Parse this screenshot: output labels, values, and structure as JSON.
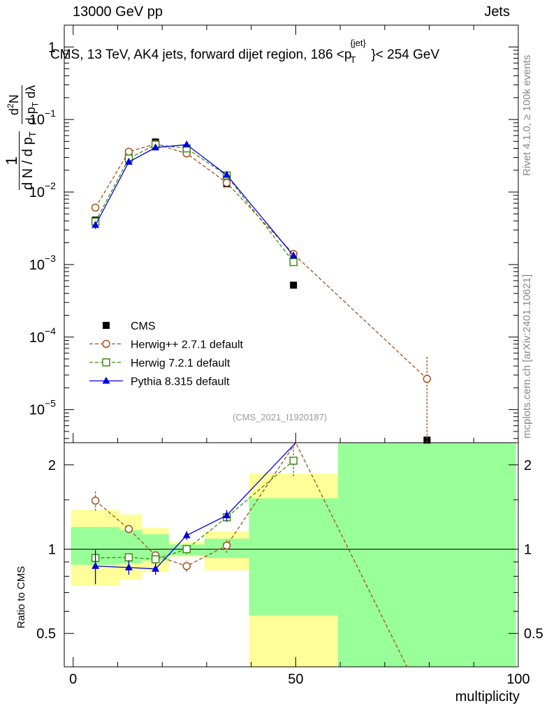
{
  "header": {
    "left": "13000 GeV pp",
    "right": "Jets"
  },
  "side_labels": {
    "rivet": "Rivet 4.1.0, ≥ 100k events",
    "mcplots": "mcplots.cern.ch [arXiv:2401.10621]"
  },
  "analysis_tag": "(CMS_2021_I1920187)",
  "ratio_ylabel": "Ratio to CMS",
  "chart_data": [
    {
      "type": "scatter",
      "title": "CMS, 13 TeV, AK4 jets, forward dijet region, 186 < p_T^{jet} < 254 GeV",
      "xlabel": "multiplicity",
      "ylabel": "1/dN/dp_T  d²N/dp_T dλ",
      "yscale": "log",
      "xlim": [
        -2,
        100
      ],
      "ylim": [
        3.5e-06,
        2
      ],
      "yticks": [
        "10^-5",
        "10^-4",
        "10^-3",
        "10^-2",
        "10^-1",
        "1"
      ],
      "series": [
        {
          "name": "CMS",
          "style": "square-filled",
          "color": "#000000",
          "x": [
            5,
            12.5,
            18.5,
            25.5,
            34.5,
            49.5,
            79.5
          ],
          "y": [
            0.0041,
            0.031,
            0.049,
            0.04,
            0.013,
            0.00052,
            3.8e-06
          ]
        },
        {
          "name": "Herwig++ 2.7.1 default",
          "style": "circle-open-dashed",
          "color": "#a0521b",
          "x": [
            5,
            12.5,
            18.5,
            25.5,
            34.5,
            49.5,
            79.5
          ],
          "y": [
            0.0061,
            0.036,
            0.046,
            0.034,
            0.0134,
            0.0014,
            2.65e-05
          ],
          "err": [
            0.0004,
            0.0015,
            0.0015,
            0.0012,
            0.0006,
            0.0001,
            2.8e-05
          ]
        },
        {
          "name": "Herwig 7.2.1 default",
          "style": "square-open-dashed",
          "color": "#3f8a0e",
          "x": [
            5,
            12.5,
            18.5,
            25.5,
            34.5,
            49.5
          ],
          "y": [
            0.0039,
            0.029,
            0.045,
            0.04,
            0.0169,
            0.00108
          ],
          "err": [
            0.0003,
            0.0012,
            0.0015,
            0.0012,
            0.0007,
            0.0001
          ]
        },
        {
          "name": "Pythia 8.315 default",
          "style": "triangle-filled-solid",
          "color": "#0000e0",
          "x": [
            5,
            12.5,
            18.5,
            25.5,
            34.5,
            49.5
          ],
          "y": [
            0.0035,
            0.026,
            0.041,
            0.045,
            0.0172,
            0.00133
          ],
          "err": [
            0.0004,
            0.0012,
            0.0015,
            0.0012,
            0.0007,
            0.0001
          ]
        }
      ],
      "legend_position": "lower-left"
    },
    {
      "type": "scatter",
      "xlabel": "multiplicity",
      "ylabel": "Ratio to CMS",
      "yscale": "log",
      "xlim": [
        -2,
        100
      ],
      "ylim": [
        0.38,
        2.4
      ],
      "xticks": [
        0,
        50,
        100
      ],
      "yticks": [
        0.5,
        1,
        2
      ],
      "bands": [
        {
          "x0": -0.5,
          "x1": 10.5,
          "stat": [
            0.88,
            1.2
          ],
          "syst": [
            0.74,
            1.38
          ]
        },
        {
          "x0": 10.5,
          "x1": 15.5,
          "stat": [
            0.89,
            1.17
          ],
          "syst": [
            0.78,
            1.33
          ]
        },
        {
          "x0": 15.5,
          "x1": 21.5,
          "stat": [
            0.91,
            1.13
          ],
          "syst": [
            0.83,
            1.19
          ]
        },
        {
          "x0": 21.5,
          "x1": 29.5,
          "stat": [
            0.95,
            1.04
          ],
          "syst": [
            0.94,
            1.06
          ]
        },
        {
          "x0": 29.5,
          "x1": 39.5,
          "stat": [
            0.93,
            1.09
          ],
          "syst": [
            0.84,
            1.16
          ]
        },
        {
          "x0": 39.5,
          "x1": 59.5,
          "stat": [
            0.58,
            1.52
          ],
          "syst": [
            0.38,
            1.86
          ]
        },
        {
          "x0": 59.5,
          "x1": 99.5,
          "stat": [
            0.38,
            2.4
          ],
          "syst": [
            0.38,
            2.4
          ]
        }
      ],
      "series": [
        {
          "name": "Herwig++ 2.7.1 default",
          "color": "#a0521b",
          "x": [
            5,
            12.5,
            18.5,
            25.5,
            34.5,
            50,
            75
          ],
          "y": [
            1.49,
            1.18,
            0.95,
            0.87,
            1.03,
            2.4,
            0.38
          ],
          "err": [
            0.12,
            0.04,
            0.04,
            0.04,
            0.06,
            0,
            0
          ]
        },
        {
          "name": "Herwig 7.2.1 default",
          "color": "#3f8a0e",
          "x": [
            5,
            12.5,
            18.5,
            25.5,
            34.5,
            49.5
          ],
          "y": [
            0.93,
            0.935,
            0.92,
            1.0,
            1.3,
            2.07
          ],
          "err": [
            0.08,
            0.04,
            0.04,
            0.04,
            0.05,
            0.25
          ]
        },
        {
          "name": "Pythia 8.315 default",
          "color": "#0000e0",
          "x": [
            5,
            12.5,
            18.5,
            25.5,
            34.5,
            50
          ],
          "y": [
            0.87,
            0.86,
            0.85,
            1.12,
            1.32,
            2.4
          ],
          "err": [
            0.12,
            0.05,
            0.04,
            0.04,
            0.06,
            0
          ]
        }
      ]
    }
  ]
}
